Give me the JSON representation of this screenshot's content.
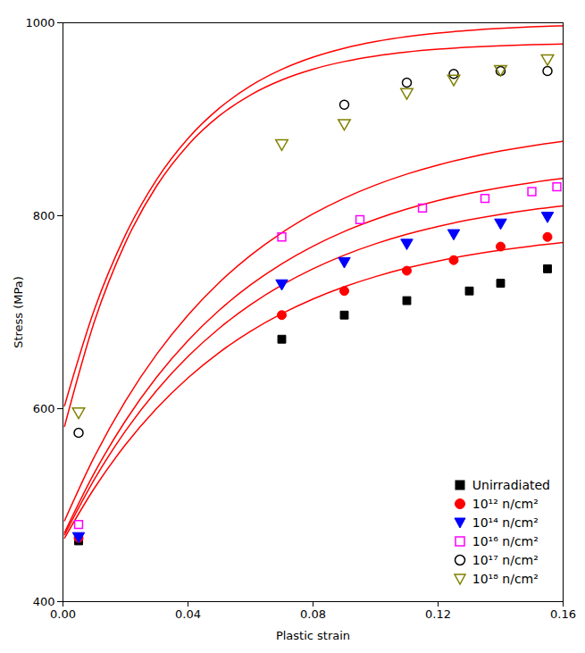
{
  "chart_data": {
    "type": "scatter",
    "title": "",
    "x_label": "Plastic strain",
    "y_label": "Stress (MPa)",
    "xlim": [
      0,
      0.16
    ],
    "ylim": [
      400,
      1000
    ],
    "xticks": [
      {
        "value": 0,
        "label": "0.00"
      },
      0.04,
      0.08,
      0.12,
      0.16
    ],
    "yticks": [
      400,
      600,
      800,
      1000
    ],
    "grid": false,
    "legend": "lower right",
    "series": [
      {
        "name": "Unirradiated",
        "type": "scatter",
        "color": "black",
        "marker": "square",
        "x": [
          0.005,
          0.07,
          0.09,
          0.11,
          0.13,
          0.14,
          0.155
        ],
        "values": [
          463,
          672,
          697,
          712,
          722,
          730,
          745
        ]
      },
      {
        "name": "10¹² n/cm²",
        "type": "scatter",
        "color": "red",
        "marker": "circle",
        "x": [
          0.005,
          0.07,
          0.09,
          0.11,
          0.125,
          0.14,
          0.155
        ],
        "values": [
          466,
          697,
          722,
          743,
          754,
          768,
          778
        ]
      },
      {
        "name": "10¹⁴ n/cm²",
        "type": "scatter",
        "color": "blue",
        "marker": "triangle-down",
        "x": [
          0.005,
          0.07,
          0.09,
          0.11,
          0.125,
          0.14,
          0.155
        ],
        "values": [
          468,
          730,
          753,
          772,
          782,
          793,
          800
        ]
      },
      {
        "name": "10¹⁶ n/cm²",
        "type": "scatter",
        "color": "magenta",
        "marker": "open-square",
        "x": [
          0.005,
          0.07,
          0.095,
          0.115,
          0.135,
          0.15,
          0.158
        ],
        "values": [
          480,
          778,
          796,
          808,
          818,
          825,
          830
        ]
      },
      {
        "name": "10¹⁷ n/cm²",
        "type": "scatter",
        "color": "black",
        "marker": "open-circle",
        "x": [
          0.005,
          0.09,
          0.11,
          0.125,
          0.14,
          0.155
        ],
        "values": [
          575,
          915,
          938,
          947,
          950,
          950
        ]
      },
      {
        "name": "10¹⁸ n/cm²",
        "type": "scatter",
        "color": "#808000",
        "marker": "open-triangle-down",
        "x": [
          0.005,
          0.07,
          0.09,
          0.11,
          0.125,
          0.14,
          0.155
        ],
        "values": [
          597,
          875,
          896,
          928,
          942,
          952,
          963
        ]
      },
      {
        "type": "line",
        "color": "red",
        "x": [
          0.0005,
          0.01,
          0.02,
          0.03,
          0.04,
          0.05,
          0.06,
          0.07,
          0.08,
          0.09,
          0.1,
          0.11,
          0.12,
          0.13,
          0.14,
          0.15,
          0.16
        ],
        "values": [
          465.96,
          517.36,
          562.69,
          600.48,
          631.99,
          658.25,
          680.16,
          698.42,
          713.64,
          726.34,
          736.92,
          745.75,
          753.1,
          759.24,
          764.35,
          768.61,
          772.17
        ]
      },
      {
        "type": "line",
        "color": "red",
        "x": [
          0.0005,
          0.01,
          0.02,
          0.03,
          0.04,
          0.05,
          0.06,
          0.07,
          0.08,
          0.09,
          0.1,
          0.11,
          0.12,
          0.13,
          0.14,
          0.15,
          0.16
        ],
        "values": [
          469.29,
          526.51,
          576.97,
          619.03,
          654.11,
          683.35,
          707.73,
          728.06,
          745.0,
          759.13,
          770.92,
          780.74,
          788.93,
          795.76,
          801.45,
          806.2,
          810.15
        ]
      },
      {
        "type": "line",
        "color": "red",
        "x": [
          0.0005,
          0.01,
          0.02,
          0.03,
          0.04,
          0.05,
          0.06,
          0.07,
          0.08,
          0.09,
          0.1,
          0.11,
          0.12,
          0.13,
          0.14,
          0.15,
          0.16
        ],
        "values": [
          471.55,
          533.17,
          587.5,
          632.8,
          670.58,
          702.07,
          728.32,
          750.21,
          768.47,
          783.68,
          796.37,
          806.95,
          815.77,
          823.12,
          829.25,
          834.36,
          838.63
        ]
      },
      {
        "type": "line",
        "color": "red",
        "x": [
          0.0005,
          0.01,
          0.02,
          0.03,
          0.04,
          0.05,
          0.06,
          0.07,
          0.08,
          0.09,
          0.1,
          0.11,
          0.12,
          0.13,
          0.14,
          0.15,
          0.16
        ],
        "values": [
          483.8,
          549.82,
          608.04,
          656.58,
          697.05,
          730.79,
          758.92,
          782.37,
          801.93,
          818.23,
          831.83,
          843.16,
          852.61,
          860.49,
          867.06,
          872.53,
          877.1
        ]
      },
      {
        "type": "line",
        "color": "red",
        "x": [
          0.0005,
          0.01,
          0.02,
          0.03,
          0.04,
          0.05,
          0.06,
          0.07,
          0.08,
          0.09,
          0.1,
          0.11,
          0.12,
          0.13,
          0.14,
          0.15,
          0.16
        ],
        "values": [
          581.69,
          689.8,
          772.07,
          831.01,
          873.24,
          903.51,
          925.19,
          940.73,
          951.86,
          959.84,
          965.55,
          969.65,
          972.58,
          974.68,
          976.19,
          977.27,
          978.04
        ]
      },
      {
        "type": "line",
        "color": "red",
        "x": [
          0.0005,
          0.01,
          0.02,
          0.03,
          0.04,
          0.05,
          0.06,
          0.07,
          0.08,
          0.09,
          0.1,
          0.11,
          0.12,
          0.13,
          0.14,
          0.15,
          0.16
        ],
        "values": [
          603.06,
          702.35,
          780.17,
          837.64,
          880.08,
          911.43,
          934.59,
          951.69,
          964.32,
          973.64,
          980.53,
          985.62,
          989.38,
          992.16,
          994.21,
          995.72,
          996.84
        ]
      }
    ]
  }
}
